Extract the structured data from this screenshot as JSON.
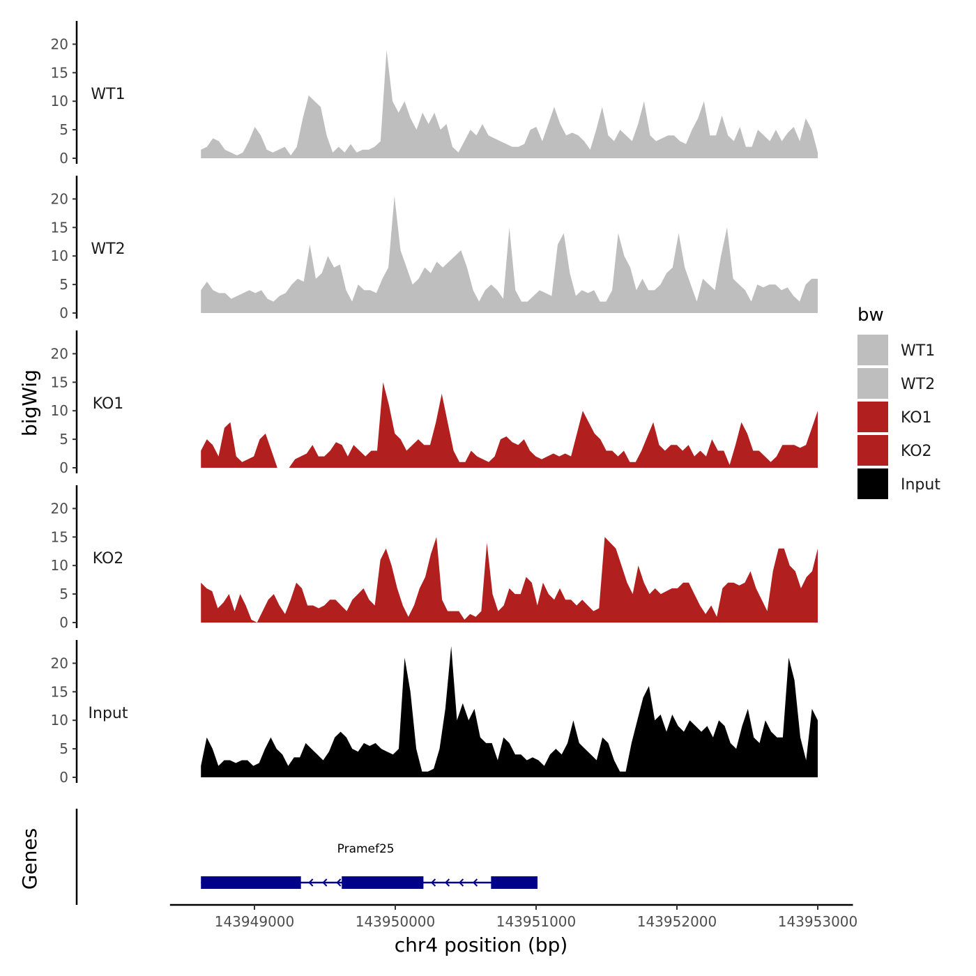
{
  "chart_data": {
    "type": "area",
    "title": "",
    "xlabel": "chr4 position (bp)",
    "ylabel": "bigWig",
    "genes_track_label": "Genes",
    "xlim": [
      143948400,
      143953250
    ],
    "ylim": [
      0,
      24
    ],
    "x_ticks": [
      143949000,
      143950000,
      143951000,
      143952000,
      143953000
    ],
    "x_tick_labels": [
      "143949000",
      "143950000",
      "143951000",
      "143952000",
      "143953000"
    ],
    "y_ticks": [
      0,
      5,
      10,
      15,
      20
    ],
    "y_tick_labels": [
      "0",
      "5",
      "10",
      "15",
      "20"
    ],
    "signal_start": 143948620,
    "signal_end": 143953000,
    "legend": {
      "title": "bw",
      "entries": [
        {
          "label": "WT1",
          "color": "#bebebe"
        },
        {
          "label": "WT2",
          "color": "#bebebe"
        },
        {
          "label": "KO1",
          "color": "#b21f1f"
        },
        {
          "label": "KO2",
          "color": "#b21f1f"
        },
        {
          "label": "Input",
          "color": "#000000"
        }
      ]
    },
    "series": [
      {
        "name": "WT1",
        "color": "#bebebe",
        "values": [
          1.5,
          2,
          3.5,
          3,
          1.5,
          1,
          0.5,
          1,
          3,
          5.5,
          4,
          1.5,
          1,
          1.5,
          2,
          0.5,
          2,
          7,
          11,
          10,
          9,
          4,
          1,
          2,
          1,
          2.5,
          1,
          1.5,
          1.5,
          2,
          3,
          19,
          10,
          8,
          10,
          7,
          5,
          8,
          6,
          8,
          5,
          6,
          2,
          1,
          3,
          5,
          4,
          6,
          4,
          3.5,
          3,
          2.5,
          2,
          2,
          2.5,
          5,
          5.5,
          3,
          6,
          9,
          6,
          4,
          4.5,
          4,
          3,
          1.5,
          5,
          9,
          4,
          3,
          5,
          4,
          3,
          6,
          10,
          4,
          3,
          3.5,
          4,
          4,
          3,
          2.5,
          5,
          7,
          10,
          4,
          4,
          7.5,
          4,
          3,
          5.5,
          2,
          2,
          5,
          4,
          3,
          5,
          3,
          4.5,
          5.5,
          3,
          7,
          5,
          1
        ]
      },
      {
        "name": "WT2",
        "color": "#bebebe",
        "values": [
          4,
          5.5,
          4,
          3.5,
          3.5,
          2.5,
          3,
          3.5,
          4,
          3.5,
          4,
          2.5,
          2,
          3,
          3.5,
          5,
          6,
          5.5,
          12,
          6,
          7,
          10,
          8,
          8.5,
          4,
          2,
          5,
          4,
          4,
          3.5,
          6,
          8,
          20.5,
          11,
          8,
          5,
          6,
          8,
          7,
          9,
          8,
          9,
          10,
          11,
          8,
          4,
          2,
          4,
          5,
          4,
          2.5,
          15,
          4,
          2,
          2,
          3,
          4,
          3.5,
          3,
          12,
          14,
          7,
          3,
          4,
          3.5,
          4,
          2,
          2,
          4,
          14,
          10,
          8,
          4,
          6,
          4,
          4,
          5,
          7,
          8,
          14,
          8,
          5,
          2,
          6,
          5,
          4,
          10,
          15,
          6,
          5,
          4,
          2,
          5,
          4.5,
          5,
          5,
          4,
          4.5,
          3,
          2,
          5,
          6,
          6
        ]
      },
      {
        "name": "KO1",
        "color": "#b21f1f",
        "values": [
          3,
          5,
          4,
          2,
          7,
          8,
          2,
          1,
          1.5,
          2,
          5,
          6,
          3,
          0,
          0,
          0,
          1.5,
          2,
          2.5,
          4,
          2,
          2,
          3,
          4.5,
          4,
          2,
          4,
          3,
          2,
          3,
          3,
          15,
          11,
          6,
          5,
          3,
          4,
          5,
          4,
          4,
          8,
          13,
          8,
          3,
          1,
          1,
          3,
          2,
          1.5,
          1,
          2,
          5,
          5.5,
          4.5,
          4,
          5,
          3,
          2,
          1.5,
          2,
          2.5,
          2,
          2.5,
          2,
          6,
          10,
          8,
          6,
          5,
          3,
          3,
          2,
          3,
          1,
          1,
          3,
          5.5,
          8,
          4,
          3,
          4,
          4,
          3,
          4,
          2,
          3,
          2,
          5,
          3,
          3,
          0.5,
          4,
          8,
          6,
          3,
          3,
          2,
          1,
          2,
          4,
          4,
          4,
          3.5,
          4,
          7,
          10
        ]
      },
      {
        "name": "KO2",
        "color": "#b21f1f",
        "values": [
          7,
          6,
          5.5,
          2.5,
          3.5,
          5,
          2,
          5,
          3,
          0.5,
          0,
          2,
          4,
          5,
          3,
          1.5,
          4,
          7,
          6,
          3,
          3,
          2.5,
          3,
          4,
          4,
          3,
          2,
          4,
          5,
          6,
          4,
          3,
          11,
          13,
          10,
          6,
          3,
          1,
          3,
          6,
          8,
          12,
          15,
          4,
          2,
          2,
          2,
          0.5,
          1.5,
          1,
          2,
          14,
          5,
          2,
          3,
          6,
          5,
          5,
          8,
          7,
          3,
          7,
          5,
          4,
          6,
          4,
          4,
          3,
          4,
          3,
          2,
          2.5,
          15,
          14,
          13,
          10,
          7,
          5,
          10,
          7,
          5,
          6,
          5,
          5.5,
          6,
          6,
          7,
          7,
          5,
          3,
          1.5,
          3,
          1,
          6,
          7,
          7,
          6.5,
          7,
          9,
          6,
          4,
          2,
          9,
          13,
          13,
          10,
          9,
          6,
          8,
          9,
          13
        ]
      },
      {
        "name": "Input",
        "color": "#000000",
        "values": [
          2,
          7,
          5,
          2,
          3,
          3,
          2.5,
          3,
          3,
          2,
          2.5,
          5,
          7,
          5,
          4,
          2,
          3.5,
          3.5,
          6,
          5,
          4,
          3,
          4.5,
          7,
          8,
          7,
          5,
          4.5,
          6,
          5.5,
          6,
          5,
          4.5,
          4,
          5,
          21,
          15,
          5,
          1,
          1,
          1.5,
          5,
          12,
          23,
          10,
          13,
          10,
          12,
          7,
          6,
          6,
          3,
          7,
          6,
          4,
          4,
          3,
          3.5,
          3,
          2,
          4,
          5,
          4,
          6,
          10,
          6,
          5,
          4,
          3,
          7,
          6,
          3,
          1,
          1,
          6,
          10,
          14,
          16,
          10,
          11,
          8,
          11,
          9,
          8,
          10,
          9,
          8,
          9,
          7,
          10,
          9,
          6,
          5,
          9,
          12,
          7,
          6,
          10,
          8,
          7,
          7,
          21,
          17,
          7,
          3,
          12,
          10
        ]
      }
    ],
    "genes": [
      {
        "name": "Pramef25",
        "strand": "-",
        "start": 143948620,
        "end": 143951010,
        "exons": [
          [
            143948620,
            143949330
          ],
          [
            143949620,
            143950200
          ],
          [
            143950680,
            143951010
          ]
        ],
        "color": "#00008b"
      }
    ]
  }
}
